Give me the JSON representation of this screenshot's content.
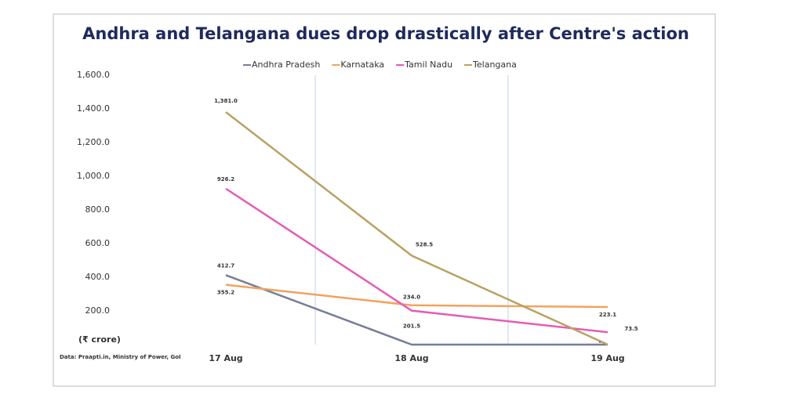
{
  "chart_data": {
    "type": "line",
    "title": "Andhra and Telangana dues drop drastically after Centre's action",
    "y_label": "(₹ crore)",
    "source": "Data: Praapti.in, Ministry of Power, GoI",
    "categories": [
      "17 Aug",
      "18 Aug",
      "19 Aug"
    ],
    "series": [
      {
        "name": "Andhra Pradesh",
        "color": "#767e96",
        "values": [
          412.7,
          0,
          0
        ],
        "value_labels": [
          "412.7",
          null,
          null
        ]
      },
      {
        "name": "Karnataka",
        "color": "#f0a35e",
        "values": [
          355.2,
          234.0,
          223.1
        ],
        "value_labels": [
          "355.2",
          "234.0",
          "223.1"
        ]
      },
      {
        "name": "Tamil Nadu",
        "color": "#e45cb5",
        "values": [
          926.2,
          201.5,
          73.5
        ],
        "value_labels": [
          "926.2",
          "201.5",
          "73.5"
        ]
      },
      {
        "name": "Telangana",
        "color": "#b9a263",
        "values": [
          1381.0,
          528.5,
          0
        ],
        "value_labels": [
          "1,381.0",
          "528.5",
          "-"
        ]
      }
    ],
    "ylim": [
      0,
      1600
    ],
    "yticks": [
      {
        "value": 200,
        "label": "200.0"
      },
      {
        "value": 400,
        "label": "400.0"
      },
      {
        "value": 600,
        "label": "600.0"
      },
      {
        "value": 800,
        "label": "800.0"
      },
      {
        "value": 1000,
        "label": "1,000.0"
      },
      {
        "value": 1200,
        "label": "1,200.0"
      },
      {
        "value": 1400,
        "label": "1,400.0"
      },
      {
        "value": 1600,
        "label": "1,600.0"
      }
    ],
    "legend": "top"
  }
}
